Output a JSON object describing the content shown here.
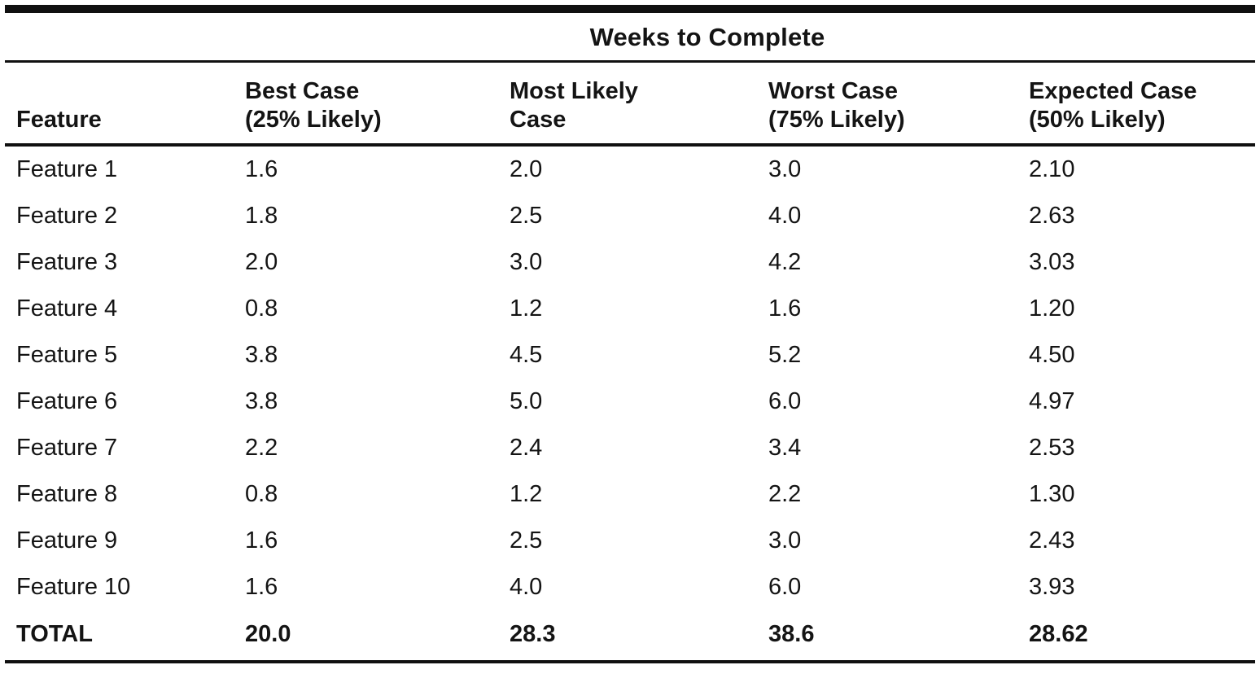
{
  "table": {
    "title": "Weeks to Complete",
    "columns": {
      "feature": "Feature",
      "best": "Best Case\n(25% Likely)",
      "likely": "Most Likely\nCase",
      "worst": "Worst Case\n(75% Likely)",
      "expected": "Expected Case\n(50% Likely)"
    },
    "rows": [
      {
        "feature": "Feature 1",
        "best": "1.6",
        "likely": "2.0",
        "worst": "3.0",
        "expected": "2.10"
      },
      {
        "feature": "Feature 2",
        "best": "1.8",
        "likely": "2.5",
        "worst": "4.0",
        "expected": "2.63"
      },
      {
        "feature": "Feature 3",
        "best": "2.0",
        "likely": "3.0",
        "worst": "4.2",
        "expected": "3.03"
      },
      {
        "feature": "Feature 4",
        "best": "0.8",
        "likely": "1.2",
        "worst": "1.6",
        "expected": "1.20"
      },
      {
        "feature": "Feature 5",
        "best": "3.8",
        "likely": "4.5",
        "worst": "5.2",
        "expected": "4.50"
      },
      {
        "feature": "Feature 6",
        "best": "3.8",
        "likely": "5.0",
        "worst": "6.0",
        "expected": "4.97"
      },
      {
        "feature": "Feature 7",
        "best": "2.2",
        "likely": "2.4",
        "worst": "3.4",
        "expected": "2.53"
      },
      {
        "feature": "Feature 8",
        "best": "0.8",
        "likely": "1.2",
        "worst": "2.2",
        "expected": "1.30"
      },
      {
        "feature": "Feature 9",
        "best": "1.6",
        "likely": "2.5",
        "worst": "3.0",
        "expected": "2.43"
      },
      {
        "feature": "Feature 10",
        "best": "1.6",
        "likely": "4.0",
        "worst": "6.0",
        "expected": "3.93"
      }
    ],
    "total": {
      "feature": "TOTAL",
      "best": "20.0",
      "likely": "28.3",
      "worst": "38.6",
      "expected": "28.62"
    }
  },
  "chart_data": {
    "type": "table",
    "title": "Weeks to Complete",
    "columns": [
      "Feature",
      "Best Case (25% Likely)",
      "Most Likely Case",
      "Worst Case (75% Likely)",
      "Expected Case (50% Likely)"
    ],
    "series": [
      {
        "name": "Best Case (25% Likely)",
        "values": [
          1.6,
          1.8,
          2.0,
          0.8,
          3.8,
          3.8,
          2.2,
          0.8,
          1.6,
          1.6
        ],
        "total": 20.0
      },
      {
        "name": "Most Likely Case",
        "values": [
          2.0,
          2.5,
          3.0,
          1.2,
          4.5,
          5.0,
          2.4,
          1.2,
          2.5,
          4.0
        ],
        "total": 28.3
      },
      {
        "name": "Worst Case (75% Likely)",
        "values": [
          3.0,
          4.0,
          4.2,
          1.6,
          5.2,
          6.0,
          3.4,
          2.2,
          3.0,
          6.0
        ],
        "total": 38.6
      },
      {
        "name": "Expected Case (50% Likely)",
        "values": [
          2.1,
          2.63,
          3.03,
          1.2,
          4.5,
          4.97,
          2.53,
          1.3,
          2.43,
          3.93
        ],
        "total": 28.62
      }
    ],
    "categories": [
      "Feature 1",
      "Feature 2",
      "Feature 3",
      "Feature 4",
      "Feature 5",
      "Feature 6",
      "Feature 7",
      "Feature 8",
      "Feature 9",
      "Feature 10"
    ]
  }
}
